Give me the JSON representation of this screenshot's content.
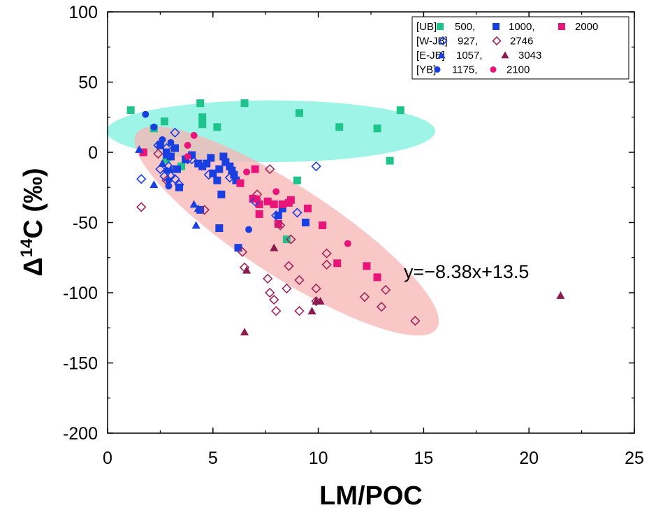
{
  "chart_data": {
    "type": "scatter",
    "xlabel": "LM/POC",
    "ylabel_prefix": "Δ",
    "ylabel_sup": "14",
    "ylabel_suffix": "C (‰)",
    "xlim": [
      0,
      25
    ],
    "ylim": [
      -200,
      100
    ],
    "x_ticks": [
      0,
      5,
      10,
      15,
      20,
      25
    ],
    "y_ticks": [
      100,
      50,
      0,
      -50,
      -100,
      -150,
      -200
    ],
    "equation": "y=−8.38x+13.5",
    "ellipses": [
      {
        "name": "UB-500 region",
        "color": "#7ff0e0",
        "center": [
          7.75,
          15
        ],
        "semi_x": 7.8,
        "semi_y": 22,
        "angle_deg": 0
      },
      {
        "name": "sample region",
        "color": "#f8b4b4",
        "center": [
          8.5,
          -56
        ],
        "semi_x": 8.5,
        "semi_y": 32,
        "angle_deg": 33
      }
    ],
    "legend": {
      "rows": [
        {
          "group": "[UB]",
          "entries": [
            {
              "label": "500,",
              "series": "UB-500"
            },
            {
              "label": "1000,",
              "series": "UB-1000"
            },
            {
              "label": "2000",
              "series": "UB-2000"
            }
          ]
        },
        {
          "group": "[W-JB]",
          "entries": [
            {
              "label": "927,",
              "series": "WJB-927"
            },
            {
              "label": "2746",
              "series": "WJB-2746"
            }
          ]
        },
        {
          "group": "[E-JB]",
          "entries": [
            {
              "label": "1057,",
              "series": "EJB-1057"
            },
            {
              "label": "3043",
              "series": "EJB-3043"
            }
          ]
        },
        {
          "group": "[YB]",
          "entries": [
            {
              "label": "1175,",
              "series": "YB-1175"
            },
            {
              "label": "2100",
              "series": "YB-2100"
            }
          ]
        }
      ]
    },
    "series": [
      {
        "name": "UB-500",
        "marker": "square",
        "filled": true,
        "color": "#1fc48a",
        "points": [
          [
            1.1,
            30
          ],
          [
            2.2,
            17
          ],
          [
            2.7,
            22
          ],
          [
            2.8,
            -5
          ],
          [
            3.5,
            -10
          ],
          [
            4.4,
            35
          ],
          [
            4.5,
            25
          ],
          [
            4.5,
            20
          ],
          [
            5.2,
            18
          ],
          [
            6.5,
            35
          ],
          [
            9.0,
            -20
          ],
          [
            9.1,
            28
          ],
          [
            8.5,
            -62
          ],
          [
            11.0,
            18
          ],
          [
            12.8,
            17
          ],
          [
            13.4,
            -6
          ],
          [
            13.9,
            30
          ]
        ]
      },
      {
        "name": "UB-1000",
        "marker": "square",
        "filled": true,
        "color": "#1a3fe0",
        "points": [
          [
            2.5,
            5
          ],
          [
            2.8,
            0
          ],
          [
            3.0,
            -3
          ],
          [
            3.2,
            3
          ],
          [
            3.3,
            -12
          ],
          [
            3.4,
            -25
          ],
          [
            3.7,
            -5
          ],
          [
            4.0,
            -2
          ],
          [
            4.3,
            -8
          ],
          [
            4.4,
            -41
          ],
          [
            4.5,
            -10
          ],
          [
            4.7,
            -8
          ],
          [
            4.9,
            -4
          ],
          [
            5.0,
            -15
          ],
          [
            5.2,
            -20
          ],
          [
            5.3,
            -12
          ],
          [
            5.4,
            -30
          ],
          [
            5.5,
            -3
          ],
          [
            5.6,
            -7
          ],
          [
            5.8,
            -10
          ],
          [
            5.9,
            -13
          ],
          [
            6.0,
            -16
          ],
          [
            6.1,
            -20
          ],
          [
            6.2,
            -68
          ],
          [
            5.3,
            -54
          ],
          [
            8.1,
            -45
          ],
          [
            8.3,
            -40
          ],
          [
            9.4,
            -50
          ]
        ]
      },
      {
        "name": "UB-2000",
        "marker": "square",
        "filled": true,
        "color": "#e8147a",
        "points": [
          [
            1.7,
            0
          ],
          [
            6.3,
            -22
          ],
          [
            6.9,
            -33
          ],
          [
            7.0,
            -12
          ],
          [
            7.2,
            -37
          ],
          [
            7.2,
            -44
          ],
          [
            7.6,
            -35
          ],
          [
            7.9,
            -37
          ],
          [
            8.1,
            -51
          ],
          [
            8.3,
            -37
          ],
          [
            8.6,
            -36
          ],
          [
            8.7,
            -34
          ],
          [
            9.5,
            -40
          ],
          [
            10.2,
            -52
          ],
          [
            10.9,
            -79
          ],
          [
            12.3,
            -81
          ],
          [
            12.8,
            -89
          ]
        ]
      },
      {
        "name": "WJB-927",
        "marker": "diamond",
        "filled": false,
        "color": "#1a3fe0",
        "points": [
          [
            1.6,
            -19
          ],
          [
            2.4,
            5
          ],
          [
            2.5,
            -12
          ],
          [
            2.7,
            -17
          ],
          [
            2.8,
            3
          ],
          [
            2.9,
            -10
          ],
          [
            3.0,
            -17
          ],
          [
            3.2,
            14
          ],
          [
            3.2,
            -19
          ],
          [
            3.4,
            -23
          ],
          [
            3.8,
            -5
          ],
          [
            4.0,
            -5
          ],
          [
            4.8,
            -16
          ],
          [
            5.8,
            -18
          ],
          [
            7.0,
            -35
          ],
          [
            8.0,
            -45
          ],
          [
            9.0,
            -43
          ],
          [
            9.9,
            -10
          ]
        ]
      },
      {
        "name": "WJB-2746",
        "marker": "diamond",
        "filled": false,
        "color": "#a0285c",
        "points": [
          [
            1.6,
            -39
          ],
          [
            2.4,
            -1
          ],
          [
            2.8,
            -20
          ],
          [
            4.6,
            -41
          ],
          [
            6.4,
            -71
          ],
          [
            6.5,
            -82
          ],
          [
            7.1,
            -30
          ],
          [
            7.6,
            -90
          ],
          [
            7.7,
            -12
          ],
          [
            7.7,
            -100
          ],
          [
            7.9,
            -105
          ],
          [
            8.0,
            -113
          ],
          [
            8.2,
            -52
          ],
          [
            8.5,
            -97
          ],
          [
            8.7,
            -62
          ],
          [
            8.6,
            -81
          ],
          [
            9.1,
            -91
          ],
          [
            9.1,
            -113
          ],
          [
            9.9,
            -97
          ],
          [
            9.9,
            -106
          ],
          [
            10.4,
            -72
          ],
          [
            10.4,
            -80
          ],
          [
            12.2,
            -103
          ],
          [
            13.0,
            -110
          ],
          [
            13.2,
            -98
          ],
          [
            14.6,
            -120
          ]
        ]
      },
      {
        "name": "EJB-1057",
        "marker": "triangle",
        "filled": true,
        "color": "#1a3fe0",
        "points": [
          [
            1.5,
            2
          ],
          [
            2.2,
            -23
          ],
          [
            2.6,
            -8
          ],
          [
            2.8,
            -2
          ],
          [
            3.0,
            -12
          ],
          [
            4.1,
            -37
          ],
          [
            4.3,
            -40
          ],
          [
            4.2,
            -52
          ]
        ]
      },
      {
        "name": "EJB-3043",
        "marker": "triangle",
        "filled": true,
        "color": "#8a1a50",
        "points": [
          [
            6.5,
            -128
          ],
          [
            6.6,
            -84
          ],
          [
            7.9,
            -68
          ],
          [
            9.7,
            -113
          ],
          [
            9.9,
            -106
          ],
          [
            10.1,
            -106
          ],
          [
            21.5,
            -102
          ]
        ]
      },
      {
        "name": "YB-1175",
        "marker": "circle",
        "filled": true,
        "color": "#1a3fe0",
        "points": [
          [
            1.8,
            27
          ],
          [
            2.2,
            18
          ],
          [
            2.6,
            9
          ],
          [
            2.8,
            -13
          ],
          [
            2.9,
            -20
          ],
          [
            2.9,
            -24
          ],
          [
            3.0,
            7
          ],
          [
            6.7,
            -55
          ]
        ]
      },
      {
        "name": "YB-2100",
        "marker": "circle",
        "filled": true,
        "color": "#e8147a",
        "points": [
          [
            3.8,
            -3
          ],
          [
            3.8,
            5
          ],
          [
            4.1,
            12
          ],
          [
            7.1,
            -33
          ],
          [
            8.0,
            -28
          ],
          [
            11.4,
            -65
          ],
          [
            6.6,
            -14
          ]
        ]
      }
    ]
  }
}
